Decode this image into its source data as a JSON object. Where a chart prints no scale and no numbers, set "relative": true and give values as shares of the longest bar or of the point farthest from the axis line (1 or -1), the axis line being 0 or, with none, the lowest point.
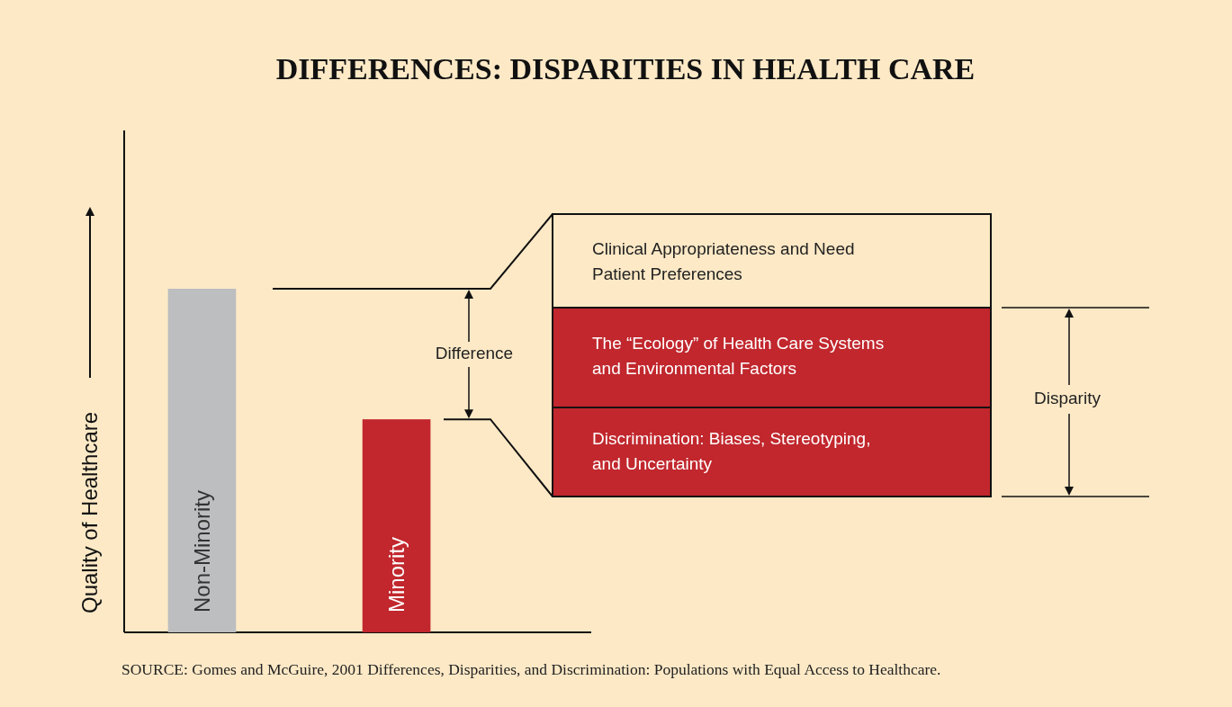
{
  "chart_data": {
    "type": "bar",
    "title": "DIFFERENCES: DISPARITIES IN HEALTH CARE",
    "ylabel": "Quality of Healthcare",
    "categories": [
      "Non-Minority",
      "Minority"
    ],
    "values": [
      1,
      0.62
    ],
    "colors": [
      "#bcbec0",
      "#c1272d"
    ],
    "relative": true,
    "tick_labels": false,
    "annotations": [
      "Difference",
      "Clinical Appropriateness and Need\nPatient Preferences",
      "The “Ecology” of Health Care Systems\nand Environmental Factors",
      "Discrimination: Biases, Stereotyping,\nand Uncertainty",
      "Disparity",
      "SOURCE: Gomes and McGuire, 2001   Differences, Disparities, and Discrimination: Populations with Equal Access to Healthcare."
    ]
  }
}
